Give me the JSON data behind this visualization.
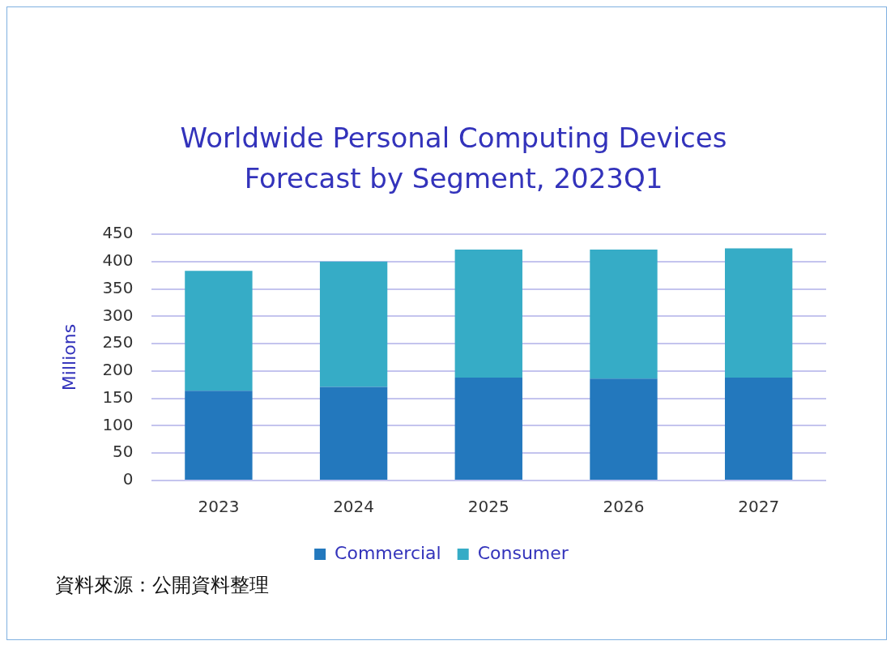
{
  "chart_data": {
    "type": "bar",
    "title": "Worldwide Personal Computing Devices Forecast by Segment, 2023Q1",
    "ylabel": "Millions",
    "categories": [
      "2023",
      "2024",
      "2025",
      "2026",
      "2027"
    ],
    "series": [
      {
        "name": "Commercial",
        "color": "#2378bd",
        "values": [
          164,
          171,
          188,
          186,
          188
        ]
      },
      {
        "name": "Consumer",
        "color": "#36acc6",
        "values": [
          219,
          229,
          234,
          236,
          236
        ]
      }
    ],
    "stacked": true,
    "ylim": [
      0,
      450
    ],
    "yticks": [
      0,
      50,
      100,
      150,
      200,
      250,
      300,
      350,
      400,
      450
    ],
    "grid": "y",
    "legend": "bottom",
    "annotations": [
      "資料來源：公開資料整理"
    ]
  }
}
